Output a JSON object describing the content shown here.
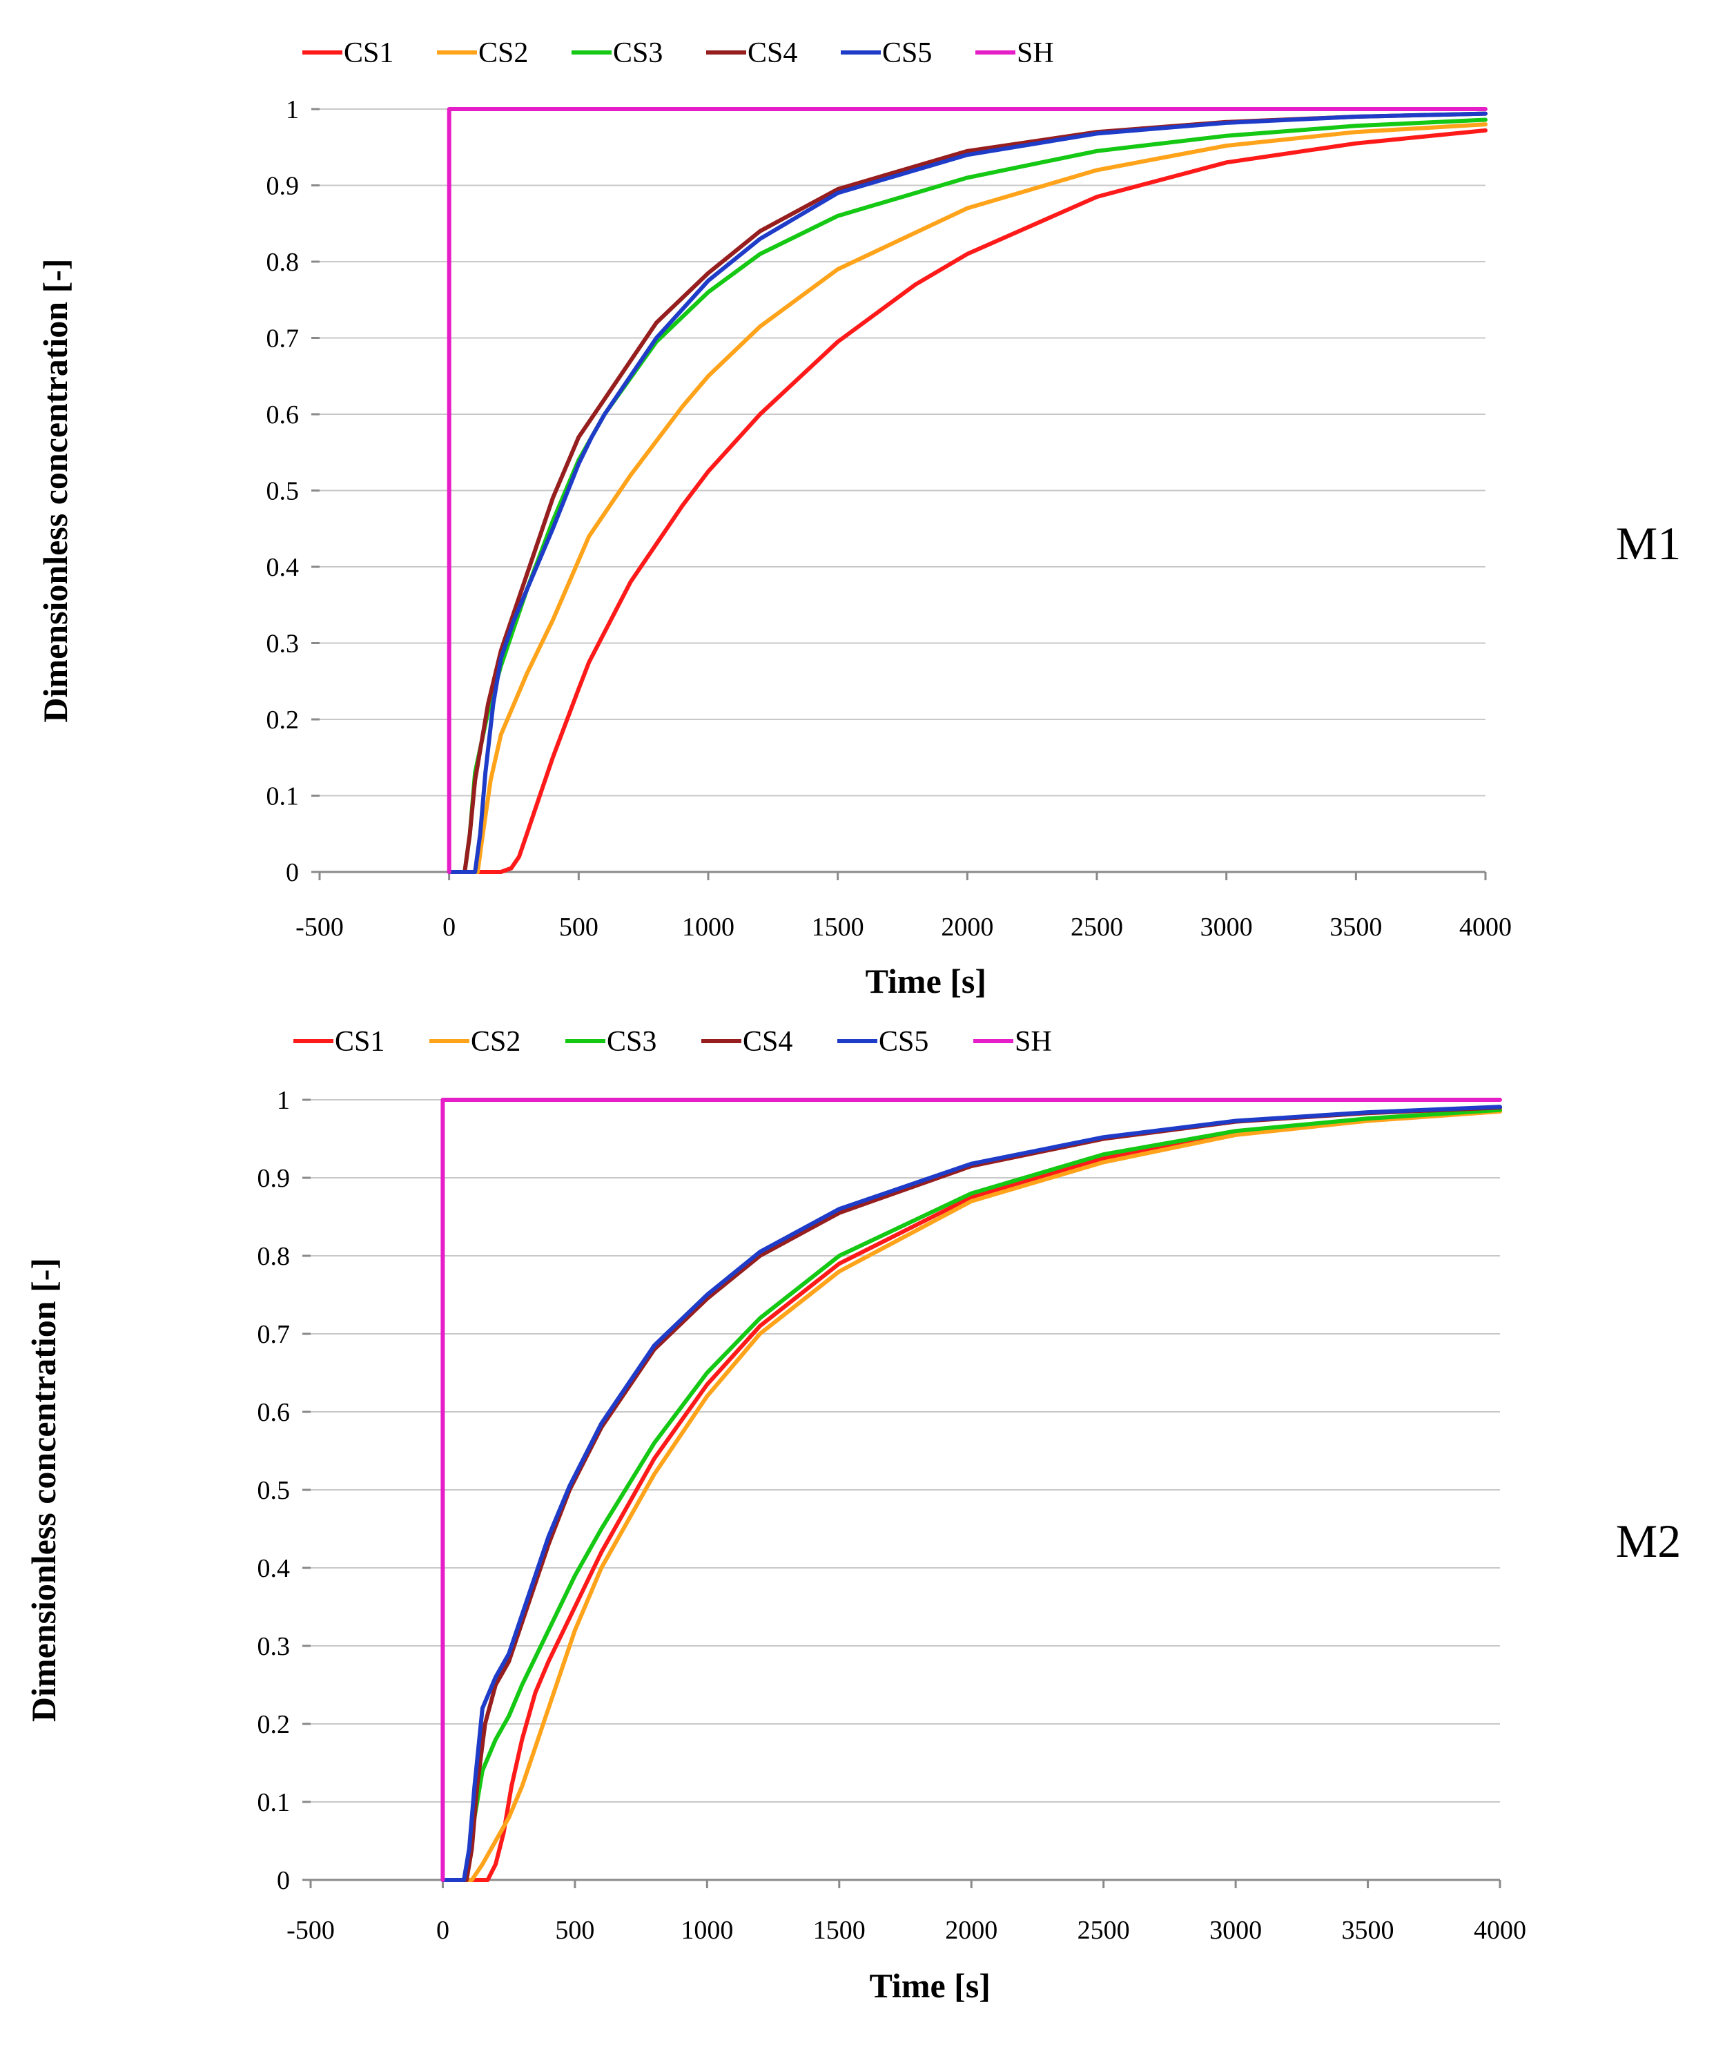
{
  "figure_labels": [
    "M1",
    "M2"
  ],
  "chart_data": [
    {
      "type": "line",
      "panel_label": "M1",
      "title": "",
      "xlabel": "Time [s]",
      "ylabel": "Dimensionless concentration [-]",
      "xlim": [
        -500,
        4000
      ],
      "ylim": [
        0,
        1
      ],
      "xticks": [
        -500,
        0,
        500,
        1000,
        1500,
        2000,
        2500,
        3000,
        3500,
        4000
      ],
      "yticks": [
        0,
        0.1,
        0.2,
        0.3,
        0.4,
        0.5,
        0.6,
        0.7,
        0.8,
        0.9,
        1
      ],
      "grid": true,
      "legend_position": "top",
      "series": [
        {
          "name": "CS1",
          "color": "#ff1a1a",
          "x": [
            0,
            200,
            240,
            270,
            300,
            350,
            400,
            500,
            540,
            700,
            900,
            1000,
            1200,
            1500,
            1800,
            2000,
            2500,
            3000,
            3500,
            4000
          ],
          "y": [
            0,
            0,
            0.005,
            0.02,
            0.05,
            0.1,
            0.15,
            0.24,
            0.275,
            0.38,
            0.48,
            0.525,
            0.6,
            0.695,
            0.77,
            0.81,
            0.885,
            0.93,
            0.955,
            0.972
          ]
        },
        {
          "name": "CS2",
          "color": "#ffa31a",
          "x": [
            0,
            110,
            130,
            160,
            200,
            300,
            400,
            540,
            700,
            900,
            1000,
            1200,
            1500,
            2000,
            2500,
            3000,
            3500,
            4000
          ],
          "y": [
            0,
            0,
            0.05,
            0.12,
            0.18,
            0.26,
            0.33,
            0.44,
            0.52,
            0.61,
            0.65,
            0.715,
            0.79,
            0.87,
            0.92,
            0.952,
            0.97,
            0.98
          ]
        },
        {
          "name": "CS3",
          "color": "#14c814",
          "x": [
            0,
            60,
            80,
            100,
            150,
            200,
            300,
            400,
            500,
            600,
            800,
            1000,
            1200,
            1500,
            2000,
            2500,
            3000,
            3500,
            4000
          ],
          "y": [
            0,
            0,
            0.05,
            0.13,
            0.21,
            0.27,
            0.37,
            0.46,
            0.54,
            0.6,
            0.695,
            0.76,
            0.81,
            0.86,
            0.91,
            0.945,
            0.965,
            0.978,
            0.986
          ]
        },
        {
          "name": "CS4",
          "color": "#961e1e",
          "x": [
            0,
            60,
            80,
            100,
            150,
            200,
            300,
            400,
            500,
            600,
            800,
            1000,
            1200,
            1500,
            2000,
            2500,
            3000,
            3500,
            4000
          ],
          "y": [
            0,
            0,
            0.05,
            0.12,
            0.22,
            0.29,
            0.39,
            0.49,
            0.57,
            0.62,
            0.72,
            0.785,
            0.84,
            0.895,
            0.945,
            0.97,
            0.983,
            0.99,
            0.994
          ]
        },
        {
          "name": "CS5",
          "color": "#1e3cc8",
          "x": [
            0,
            100,
            120,
            140,
            170,
            200,
            250,
            300,
            400,
            500,
            550,
            600,
            800,
            1000,
            1200,
            1500,
            2000,
            2500,
            3000,
            3500,
            4000
          ],
          "y": [
            0,
            0,
            0.05,
            0.13,
            0.22,
            0.28,
            0.33,
            0.37,
            0.45,
            0.535,
            0.57,
            0.6,
            0.7,
            0.775,
            0.83,
            0.89,
            0.94,
            0.968,
            0.982,
            0.99,
            0.994
          ]
        },
        {
          "name": "SH",
          "color": "#e61ec8",
          "x": [
            0,
            0.001,
            4000
          ],
          "y": [
            0,
            1,
            1
          ]
        }
      ]
    },
    {
      "type": "line",
      "panel_label": "M2",
      "title": "",
      "xlabel": "Time [s]",
      "ylabel": "Dimensionless concentration [-]",
      "xlim": [
        -500,
        4000
      ],
      "ylim": [
        0,
        1
      ],
      "xticks": [
        -500,
        0,
        500,
        1000,
        1500,
        2000,
        2500,
        3000,
        3500,
        4000
      ],
      "yticks": [
        0,
        0.1,
        0.2,
        0.3,
        0.4,
        0.5,
        0.6,
        0.7,
        0.8,
        0.9,
        1
      ],
      "grid": true,
      "legend_position": "top",
      "series": [
        {
          "name": "CS1",
          "color": "#ff1a1a",
          "x": [
            0,
            170,
            200,
            230,
            260,
            300,
            350,
            400,
            500,
            600,
            800,
            1000,
            1200,
            1500,
            2000,
            2500,
            3000,
            3500,
            4000
          ],
          "y": [
            0,
            0,
            0.02,
            0.06,
            0.12,
            0.18,
            0.24,
            0.28,
            0.35,
            0.42,
            0.54,
            0.635,
            0.71,
            0.79,
            0.875,
            0.925,
            0.957,
            0.975,
            0.986
          ]
        },
        {
          "name": "CS2",
          "color": "#ffa31a",
          "x": [
            0,
            110,
            150,
            200,
            250,
            300,
            350,
            400,
            500,
            600,
            800,
            1000,
            1200,
            1500,
            2000,
            2500,
            3000,
            3500,
            4000
          ],
          "y": [
            0,
            0,
            0.02,
            0.05,
            0.08,
            0.12,
            0.17,
            0.22,
            0.32,
            0.4,
            0.52,
            0.62,
            0.7,
            0.78,
            0.87,
            0.92,
            0.955,
            0.973,
            0.985
          ]
        },
        {
          "name": "CS3",
          "color": "#14c814",
          "x": [
            0,
            80,
            100,
            120,
            150,
            200,
            250,
            300,
            400,
            500,
            600,
            800,
            1000,
            1200,
            1500,
            2000,
            2500,
            3000,
            3500,
            4000
          ],
          "y": [
            0,
            0,
            0.03,
            0.08,
            0.14,
            0.18,
            0.21,
            0.25,
            0.32,
            0.39,
            0.45,
            0.56,
            0.65,
            0.72,
            0.8,
            0.88,
            0.93,
            0.96,
            0.976,
            0.987
          ]
        },
        {
          "name": "CS4",
          "color": "#961e1e",
          "x": [
            0,
            90,
            110,
            130,
            160,
            200,
            250,
            300,
            400,
            480,
            600,
            800,
            1000,
            1200,
            1500,
            2000,
            2500,
            3000,
            3500,
            4000
          ],
          "y": [
            0,
            0,
            0.04,
            0.12,
            0.2,
            0.25,
            0.28,
            0.33,
            0.43,
            0.5,
            0.58,
            0.68,
            0.745,
            0.8,
            0.855,
            0.915,
            0.95,
            0.972,
            0.983,
            0.99
          ]
        },
        {
          "name": "CS5",
          "color": "#1e3cc8",
          "x": [
            0,
            80,
            100,
            120,
            150,
            200,
            250,
            300,
            400,
            480,
            600,
            800,
            1000,
            1200,
            1500,
            2000,
            2500,
            3000,
            3500,
            4000
          ],
          "y": [
            0,
            0,
            0.04,
            0.12,
            0.22,
            0.26,
            0.29,
            0.34,
            0.44,
            0.505,
            0.585,
            0.685,
            0.75,
            0.805,
            0.86,
            0.918,
            0.952,
            0.973,
            0.984,
            0.991
          ]
        },
        {
          "name": "SH",
          "color": "#e61ec8",
          "x": [
            0,
            0.001,
            4000
          ],
          "y": [
            0,
            1,
            1
          ]
        }
      ]
    }
  ]
}
